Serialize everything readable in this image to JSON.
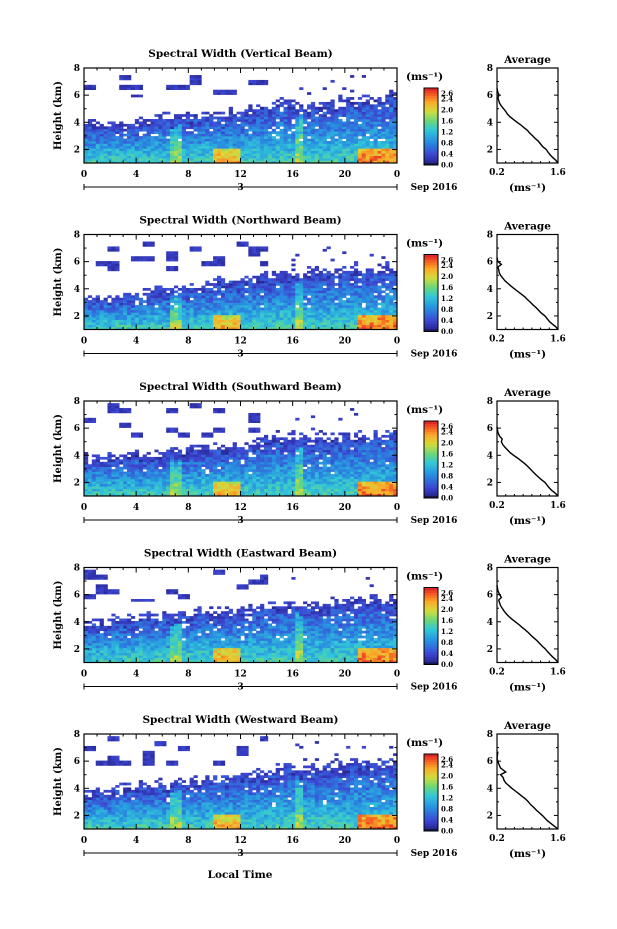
{
  "figure": {
    "xlabel": "Local Time",
    "date_label": "Sep 2016"
  },
  "chart_data": [
    {
      "type": "heatmap",
      "title": "Spectral Width (Vertical Beam)",
      "ylabel": "Height (km)",
      "xlabel": "",
      "xlim": [
        0,
        24
      ],
      "xticks": [
        "0",
        "4",
        "8",
        "12",
        "16",
        "20",
        "0"
      ],
      "day_tick": "3",
      "ylim": [
        1,
        8
      ],
      "yticks": [
        "2",
        "4",
        "6",
        "8"
      ],
      "colorbar": {
        "unit": "(ms⁻¹)",
        "ticks": [
          "2.6",
          "2.4",
          "2.0",
          "1.6",
          "1.2",
          "0.8",
          "0.4",
          "0.0"
        ],
        "range": [
          0.0,
          2.8
        ]
      },
      "cloud_top_km": 5.8,
      "echo_top_km": [
        3.8,
        3.7,
        3.7,
        3.8,
        3.8,
        3.9,
        4.1,
        4.2,
        4.3,
        4.4,
        4.5,
        4.4,
        4.5,
        4.8,
        5.0,
        5.2,
        5.2,
        5.0,
        5.1,
        5.2,
        5.4,
        5.5,
        5.6,
        5.7,
        5.9
      ]
    },
    {
      "type": "heatmap",
      "title": "Spectral Width (Northward Beam)",
      "ylabel": "Height (km)",
      "xlabel": "",
      "xlim": [
        0,
        24
      ],
      "xticks": [
        "0",
        "4",
        "8",
        "12",
        "16",
        "20",
        "0"
      ],
      "day_tick": "3",
      "ylim": [
        1,
        8
      ],
      "yticks": [
        "2",
        "4",
        "6",
        "8"
      ],
      "colorbar": {
        "unit": "(ms⁻¹)",
        "ticks": [
          "2.6",
          "2.4",
          "2.0",
          "1.6",
          "1.2",
          "0.8",
          "0.4",
          "0.0"
        ],
        "range": [
          0.0,
          2.8
        ]
      },
      "cloud_top_km": 5.4,
      "echo_top_km": [
        3.0,
        3.1,
        3.2,
        3.3,
        3.5,
        3.6,
        3.7,
        3.9,
        4.0,
        4.1,
        4.3,
        4.3,
        4.4,
        4.6,
        4.8,
        4.9,
        5.0,
        4.9,
        5.0,
        5.1,
        5.2,
        5.3,
        5.3,
        5.4,
        5.4
      ]
    },
    {
      "type": "heatmap",
      "title": "Spectral Width (Southward Beam)",
      "ylabel": "Height (km)",
      "xlabel": "",
      "xlim": [
        0,
        24
      ],
      "xticks": [
        "0",
        "4",
        "8",
        "12",
        "16",
        "20",
        "0"
      ],
      "day_tick": "3",
      "ylim": [
        1,
        8
      ],
      "yticks": [
        "2",
        "4",
        "6",
        "8"
      ],
      "colorbar": {
        "unit": "(ms⁻¹)",
        "ticks": [
          "2.6",
          "2.4",
          "2.0",
          "1.6",
          "1.2",
          "0.8",
          "0.4",
          "0.0"
        ],
        "range": [
          0.0,
          2.8
        ]
      },
      "cloud_top_km": 5.3,
      "echo_top_km": [
        3.6,
        3.6,
        3.6,
        3.7,
        3.8,
        3.9,
        4.0,
        4.1,
        4.2,
        4.3,
        4.4,
        4.4,
        4.5,
        4.7,
        5.0,
        5.2,
        5.2,
        5.0,
        5.0,
        5.1,
        5.2,
        5.3,
        5.3,
        5.4,
        5.6
      ]
    },
    {
      "type": "heatmap",
      "title": "Spectral Width (Eastward Beam)",
      "ylabel": "Height (km)",
      "xlabel": "",
      "xlim": [
        0,
        24
      ],
      "xticks": [
        "0",
        "4",
        "8",
        "12",
        "16",
        "20",
        "0"
      ],
      "day_tick": "3",
      "ylim": [
        1,
        8
      ],
      "yticks": [
        "2",
        "4",
        "6",
        "8"
      ],
      "colorbar": {
        "unit": "(ms⁻¹)",
        "ticks": [
          "2.6",
          "2.4",
          "2.0",
          "1.6",
          "1.2",
          "0.8",
          "0.4",
          "0.0"
        ],
        "range": [
          0.0,
          2.8
        ]
      },
      "cloud_top_km": 5.5,
      "echo_top_km": [
        3.8,
        3.8,
        3.9,
        4.0,
        4.1,
        4.2,
        4.3,
        4.4,
        4.5,
        4.6,
        4.6,
        4.6,
        4.7,
        4.8,
        5.0,
        5.1,
        5.1,
        5.0,
        5.1,
        5.2,
        5.3,
        5.4,
        5.4,
        5.5,
        5.6
      ]
    },
    {
      "type": "heatmap",
      "title": "Spectral Width (Westward Beam)",
      "ylabel": "Height (km)",
      "xlabel": "",
      "xlim": [
        0,
        24
      ],
      "xticks": [
        "0",
        "4",
        "8",
        "12",
        "16",
        "20",
        "0"
      ],
      "day_tick": "3",
      "ylim": [
        1,
        8
      ],
      "yticks": [
        "2",
        "4",
        "6",
        "8"
      ],
      "colorbar": {
        "unit": "(ms⁻¹)",
        "ticks": [
          "2.6",
          "2.4",
          "2.0",
          "1.6",
          "1.2",
          "0.8",
          "0.4",
          "0.0"
        ],
        "range": [
          0.0,
          2.8
        ]
      },
      "cloud_top_km": 5.6,
      "echo_top_km": [
        3.6,
        3.6,
        3.7,
        3.8,
        3.9,
        4.0,
        4.1,
        4.2,
        4.3,
        4.4,
        4.5,
        4.5,
        4.6,
        4.8,
        5.0,
        5.2,
        5.3,
        5.2,
        5.3,
        5.4,
        5.5,
        5.6,
        5.6,
        5.7,
        5.9
      ]
    },
    {
      "type": "line",
      "title": "Average",
      "xlabel": "(ms⁻¹)",
      "ylabel": "",
      "xlim": [
        0.2,
        1.6
      ],
      "xticks": [
        "0.2",
        "1.6"
      ],
      "ylim": [
        1,
        8
      ],
      "yticks": [
        "2",
        "4",
        "6",
        "8"
      ],
      "series": [
        {
          "x": [
            1.6,
            1.55,
            1.48,
            1.42,
            1.37,
            1.33,
            1.25,
            1.2,
            1.15,
            1.08,
            1.02,
            0.95,
            0.9,
            0.82,
            0.75,
            0.66,
            0.58,
            0.5,
            0.44,
            0.4,
            0.35,
            0.3,
            0.26,
            0.24,
            0.22,
            0.25,
            0.22,
            0.2
          ],
          "y": [
            1.0,
            1.2,
            1.4,
            1.6,
            1.8,
            2.0,
            2.2,
            2.4,
            2.6,
            2.8,
            3.0,
            3.2,
            3.4,
            3.6,
            3.8,
            4.0,
            4.2,
            4.4,
            4.6,
            4.8,
            5.0,
            5.2,
            5.4,
            5.6,
            5.8,
            6.0,
            6.2,
            6.5
          ]
        }
      ]
    },
    {
      "type": "line",
      "title": "Average",
      "xlabel": "(ms⁻¹)",
      "ylabel": "",
      "xlim": [
        0.2,
        1.6
      ],
      "xticks": [
        "0.2",
        "1.6"
      ],
      "ylim": [
        1,
        8
      ],
      "yticks": [
        "2",
        "4",
        "6",
        "8"
      ],
      "series": [
        {
          "x": [
            1.6,
            1.55,
            1.47,
            1.4,
            1.35,
            1.3,
            1.22,
            1.16,
            1.1,
            1.03,
            0.97,
            0.9,
            0.84,
            0.76,
            0.68,
            0.6,
            0.52,
            0.45,
            0.38,
            0.33,
            0.28,
            0.25,
            0.24,
            0.22,
            0.3,
            0.22,
            0.2
          ],
          "y": [
            1.0,
            1.2,
            1.4,
            1.6,
            1.8,
            2.0,
            2.2,
            2.4,
            2.6,
            2.8,
            3.0,
            3.2,
            3.4,
            3.6,
            3.8,
            4.0,
            4.2,
            4.4,
            4.6,
            4.8,
            5.0,
            5.2,
            5.4,
            5.6,
            5.8,
            6.0,
            6.3
          ]
        }
      ]
    },
    {
      "type": "line",
      "title": "Average",
      "xlabel": "(ms⁻¹)",
      "ylabel": "",
      "xlim": [
        0.2,
        1.6
      ],
      "xticks": [
        "0.2",
        "1.6"
      ],
      "ylim": [
        1,
        8
      ],
      "yticks": [
        "2",
        "4",
        "6",
        "8"
      ],
      "series": [
        {
          "x": [
            1.6,
            1.54,
            1.46,
            1.4,
            1.35,
            1.3,
            1.22,
            1.15,
            1.08,
            1.02,
            0.96,
            0.9,
            0.83,
            0.75,
            0.67,
            0.58,
            0.5,
            0.44,
            0.38,
            0.33,
            0.3,
            0.32,
            0.26,
            0.22,
            0.2
          ],
          "y": [
            1.0,
            1.2,
            1.4,
            1.6,
            1.8,
            2.0,
            2.2,
            2.4,
            2.6,
            2.8,
            3.0,
            3.2,
            3.4,
            3.6,
            3.8,
            4.0,
            4.2,
            4.4,
            4.6,
            4.8,
            5.0,
            5.2,
            5.4,
            5.7,
            6.1
          ]
        }
      ]
    },
    {
      "type": "line",
      "title": "Average",
      "xlabel": "(ms⁻¹)",
      "ylabel": "",
      "xlim": [
        0.2,
        1.6
      ],
      "xticks": [
        "0.2",
        "1.6"
      ],
      "ylim": [
        1,
        8
      ],
      "yticks": [
        "2",
        "4",
        "6",
        "8"
      ],
      "series": [
        {
          "x": [
            1.6,
            1.55,
            1.48,
            1.42,
            1.36,
            1.31,
            1.24,
            1.18,
            1.12,
            1.05,
            0.98,
            0.92,
            0.85,
            0.77,
            0.7,
            0.62,
            0.54,
            0.47,
            0.41,
            0.36,
            0.32,
            0.28,
            0.26,
            0.24,
            0.3,
            0.26,
            0.22,
            0.2
          ],
          "y": [
            1.0,
            1.2,
            1.4,
            1.6,
            1.8,
            2.0,
            2.2,
            2.4,
            2.6,
            2.8,
            3.0,
            3.2,
            3.4,
            3.6,
            3.8,
            4.0,
            4.2,
            4.4,
            4.6,
            4.8,
            5.0,
            5.2,
            5.4,
            5.6,
            5.8,
            6.0,
            6.3,
            6.7
          ]
        }
      ]
    },
    {
      "type": "line",
      "title": "Average",
      "xlabel": "(ms⁻¹)",
      "ylabel": "",
      "xlim": [
        0.2,
        1.6
      ],
      "xticks": [
        "0.2",
        "1.6"
      ],
      "ylim": [
        1,
        8
      ],
      "yticks": [
        "2",
        "4",
        "6",
        "8"
      ],
      "series": [
        {
          "x": [
            1.6,
            1.52,
            1.44,
            1.36,
            1.3,
            1.24,
            1.17,
            1.1,
            1.04,
            0.97,
            0.92,
            0.86,
            0.78,
            0.7,
            0.62,
            0.54,
            0.47,
            0.4,
            0.36,
            0.34,
            0.28,
            0.4,
            0.28,
            0.24,
            0.2,
            0.22
          ],
          "y": [
            1.0,
            1.2,
            1.4,
            1.6,
            1.8,
            2.0,
            2.2,
            2.4,
            2.6,
            2.8,
            3.0,
            3.2,
            3.4,
            3.6,
            3.8,
            4.0,
            4.2,
            4.4,
            4.6,
            4.8,
            5.0,
            5.2,
            5.5,
            5.8,
            6.2,
            6.7
          ]
        }
      ]
    }
  ]
}
